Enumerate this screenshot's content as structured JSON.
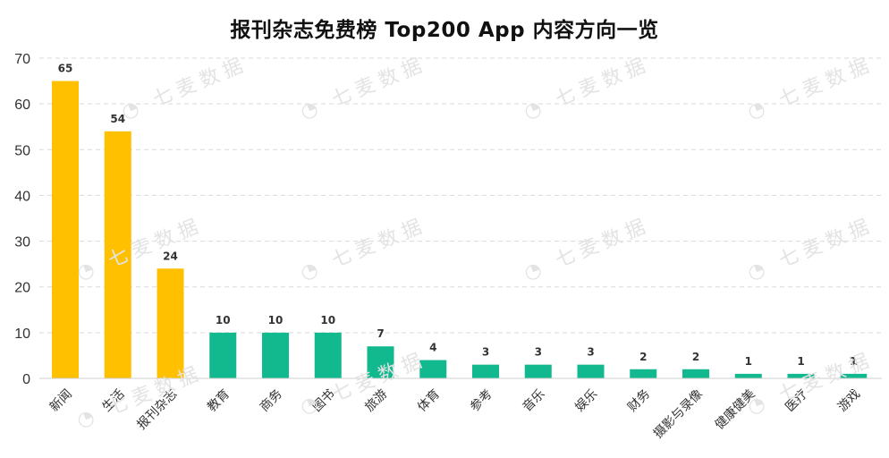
{
  "chart_data": {
    "type": "bar",
    "title": "报刊杂志免费榜 Top200 App 内容方向一览",
    "categories": [
      "新闻",
      "生活",
      "报刊杂志",
      "教育",
      "商务",
      "图书",
      "旅游",
      "体育",
      "参考",
      "音乐",
      "娱乐",
      "财务",
      "摄影与录像",
      "健康健美",
      "医疗",
      "游戏"
    ],
    "values": [
      65,
      54,
      24,
      10,
      10,
      10,
      7,
      4,
      3,
      3,
      3,
      2,
      2,
      1,
      1,
      1
    ],
    "colors": [
      "#FFC000",
      "#FFC000",
      "#FFC000",
      "#12B88E",
      "#12B88E",
      "#12B88E",
      "#12B88E",
      "#12B88E",
      "#12B88E",
      "#12B88E",
      "#12B88E",
      "#12B88E",
      "#12B88E",
      "#12B88E",
      "#12B88E",
      "#12B88E"
    ],
    "ylim": [
      0,
      70
    ],
    "yticks": [
      0,
      10,
      20,
      30,
      40,
      50,
      60,
      70
    ],
    "xlabel": "",
    "ylabel": "",
    "grid": true,
    "gridline_style": "dashed"
  },
  "watermark": {
    "text": "七麦数据"
  }
}
